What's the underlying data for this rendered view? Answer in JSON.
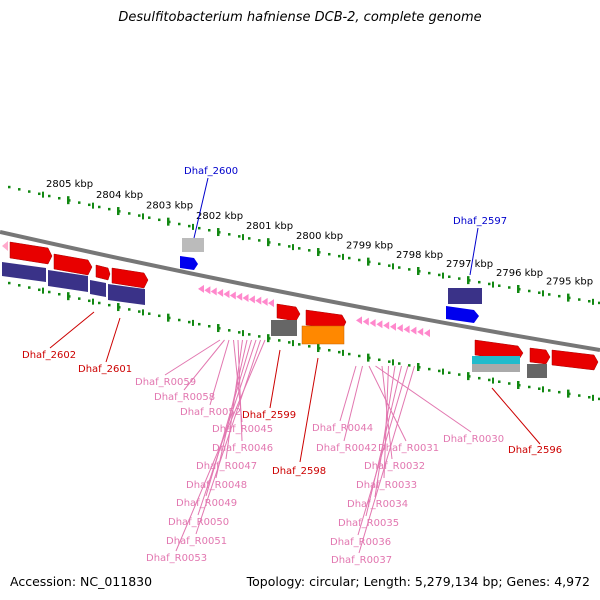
{
  "title": "Desulfitobacterium hafniense DCB-2, complete genome",
  "footer": {
    "accession": "Accession: NC_011830",
    "topology": "Topology: circular; Length: 5,279,134 bp; Genes: 4,972"
  },
  "colors": {
    "forward_gene": "#ee0000",
    "reverse_cds": "#3a3288",
    "trna": "#ff88cc",
    "ruler": "#118811",
    "blue_label": "#0000cc",
    "red_label": "#cc0000",
    "pink_label": "#e277b0",
    "backbone": "#888888",
    "orange_gene": "#ff8800",
    "cyan_gene": "#22bbcc"
  },
  "ruler_ticks": [
    {
      "label": "2805 kbp"
    },
    {
      "label": "2804 kbp"
    },
    {
      "label": "2803 kbp"
    },
    {
      "label": "2802 kbp"
    },
    {
      "label": "2801 kbp"
    },
    {
      "label": "2800 kbp"
    },
    {
      "label": "2799 kbp"
    },
    {
      "label": "2798 kbp"
    },
    {
      "label": "2797 kbp"
    },
    {
      "label": "2796 kbp"
    },
    {
      "label": "2795 kbp"
    }
  ],
  "gene_labels": {
    "blue": [
      {
        "id": "Dhaf_2600"
      },
      {
        "id": "Dhaf_2597"
      }
    ],
    "red": [
      {
        "id": "Dhaf_2602"
      },
      {
        "id": "Dhaf_2601"
      },
      {
        "id": "Dhaf_2599"
      },
      {
        "id": "Dhaf_2598"
      },
      {
        "id": "Dhaf_2596"
      }
    ],
    "pink_left": [
      "Dhaf_R0059",
      "Dhaf_R0058",
      "Dhaf_R0052",
      "Dhaf_R0045",
      "Dhaf_R0046",
      "Dhaf_R0047",
      "Dhaf_R0048",
      "Dhaf_R0049",
      "Dhaf_R0050",
      "Dhaf_R0051",
      "Dhaf_R0053"
    ],
    "pink_right": [
      "Dhaf_R0044",
      "Dhaf_R0042",
      "Dhaf_R0031",
      "Dhaf_R0030",
      "Dhaf_R0032",
      "Dhaf_R0033",
      "Dhaf_R0034",
      "Dhaf_R0035",
      "Dhaf_R0036",
      "Dhaf_R0037"
    ]
  }
}
